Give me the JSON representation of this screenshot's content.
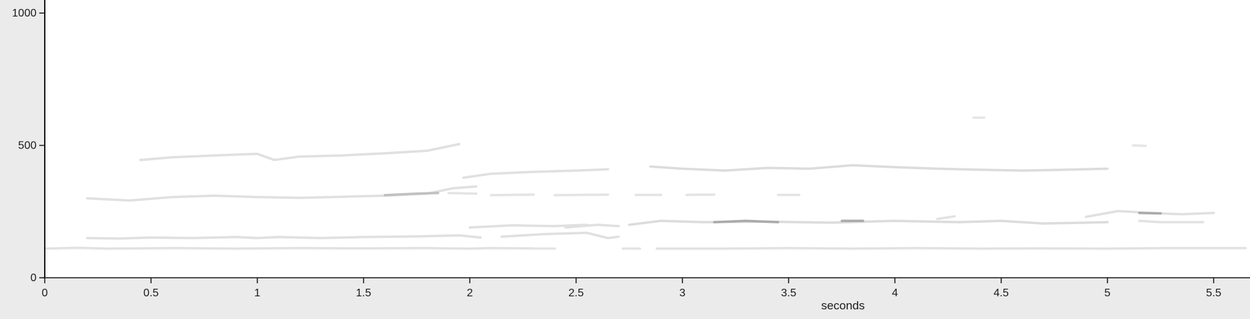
{
  "chart_data": {
    "type": "line",
    "title": "",
    "xlabel": "seconds",
    "ylabel": "",
    "xlim": [
      0,
      5.68
    ],
    "ylim": [
      0,
      1000
    ],
    "x_ticks": [
      0,
      0.5,
      1,
      1.5,
      2,
      2.5,
      3,
      3.5,
      4,
      4.5,
      5,
      5.5
    ],
    "x_tick_labels": [
      "0",
      "0.5",
      "1",
      "1.5",
      "2",
      "2.5",
      "3",
      "3.5",
      "4",
      "4.5",
      "5",
      "5.5"
    ],
    "y_ticks": [
      0,
      500,
      1000
    ],
    "y_tick_labels": [
      "0",
      "500",
      "1000"
    ],
    "grid": false,
    "colors": {
      "plot_bg": "#ffffff",
      "frame_bg": "#ebebeb",
      "axis": "#1a1a1a",
      "trace_light": "#e4e4e4",
      "trace_dark": "#a8a8a8"
    },
    "series": [
      {
        "color": "#e2e2e2",
        "x": [
          0.0,
          0.15,
          0.3,
          0.6,
          0.9,
          1.2,
          1.5,
          1.8,
          2.0,
          2.1,
          2.3
        ],
        "y": [
          110,
          113,
          110,
          112,
          110,
          112,
          111,
          112,
          110,
          112,
          111
        ]
      },
      {
        "color": "#e4e4e4",
        "x": [
          2.3,
          2.4
        ],
        "y": [
          110,
          110
        ]
      },
      {
        "color": "#e4e4e4",
        "x": [
          2.72,
          2.8
        ],
        "y": [
          110,
          110
        ]
      },
      {
        "color": "#e2e2e2",
        "x": [
          2.88,
          3.2,
          3.5,
          3.8,
          4.1,
          4.4,
          4.7,
          5.0,
          5.3,
          5.65
        ],
        "y": [
          110,
          110,
          112,
          110,
          112,
          110,
          111,
          110,
          112,
          112
        ]
      },
      {
        "color": "#e0e0e0",
        "x": [
          0.2,
          0.35,
          0.5,
          0.7,
          0.9,
          1.0,
          1.1,
          1.3,
          1.5,
          1.75,
          1.95,
          2.05
        ],
        "y": [
          150,
          148,
          152,
          150,
          154,
          150,
          154,
          150,
          154,
          156,
          160,
          152
        ]
      },
      {
        "color": "#e0e0e0",
        "x": [
          2.0,
          2.2,
          2.4,
          2.55
        ],
        "y": [
          190,
          198,
          195,
          200
        ]
      },
      {
        "color": "#e0e0e0",
        "x": [
          2.15,
          2.35,
          2.55,
          2.65,
          2.7
        ],
        "y": [
          155,
          165,
          170,
          150,
          155
        ]
      },
      {
        "color": "#e0e0e0",
        "x": [
          2.45,
          2.6,
          2.7
        ],
        "y": [
          190,
          200,
          195
        ]
      },
      {
        "color": "#dcdcdc",
        "x": [
          2.75,
          2.9,
          3.1,
          3.4,
          3.7,
          4.0,
          4.3,
          4.5,
          4.7,
          4.9,
          5.0
        ],
        "y": [
          200,
          215,
          210,
          212,
          208,
          215,
          210,
          215,
          205,
          208,
          210
        ]
      },
      {
        "color": "#aaaaaa",
        "x": [
          3.15,
          3.3,
          3.45
        ],
        "y": [
          210,
          215,
          210
        ]
      },
      {
        "color": "#aaaaaa",
        "x": [
          3.75,
          3.85
        ],
        "y": [
          215,
          215
        ]
      },
      {
        "color": "#e2e2e2",
        "x": [
          4.2,
          4.28
        ],
        "y": [
          222,
          232
        ]
      },
      {
        "color": "#e0e0e0",
        "x": [
          4.9,
          5.05,
          5.2,
          5.35,
          5.5
        ],
        "y": [
          230,
          252,
          245,
          240,
          245
        ]
      },
      {
        "color": "#aaaaaa",
        "x": [
          5.15,
          5.25
        ],
        "y": [
          245,
          243
        ]
      },
      {
        "color": "#e2e2e2",
        "x": [
          5.15,
          5.25,
          5.45
        ],
        "y": [
          215,
          210,
          210
        ]
      },
      {
        "color": "#e0e0e0",
        "x": [
          0.2,
          0.4,
          0.6,
          0.8,
          1.0,
          1.2,
          1.4,
          1.6,
          1.8,
          1.92,
          2.03
        ],
        "y": [
          300,
          292,
          305,
          310,
          305,
          302,
          306,
          310,
          318,
          338,
          345
        ]
      },
      {
        "color": "#c0c0c0",
        "x": [
          1.6,
          1.75,
          1.85
        ],
        "y": [
          312,
          318,
          320
        ]
      },
      {
        "color": "#e4e4e4",
        "x": [
          1.9,
          2.03
        ],
        "y": [
          320,
          318
        ]
      },
      {
        "color": "#e4e4e4",
        "x": [
          2.1,
          2.3
        ],
        "y": [
          312,
          314
        ]
      },
      {
        "color": "#e4e4e4",
        "x": [
          2.4,
          2.65
        ],
        "y": [
          312,
          314
        ]
      },
      {
        "color": "#e4e4e4",
        "x": [
          2.78,
          2.9
        ],
        "y": [
          313,
          313
        ]
      },
      {
        "color": "#e4e4e4",
        "x": [
          3.02,
          3.15
        ],
        "y": [
          313,
          314
        ]
      },
      {
        "color": "#e4e4e4",
        "x": [
          3.45,
          3.55
        ],
        "y": [
          313,
          313
        ]
      },
      {
        "color": "#e0e0e0",
        "x": [
          0.45,
          0.6,
          0.8,
          1.0,
          1.08,
          1.2,
          1.4,
          1.6,
          1.8,
          1.95
        ],
        "y": [
          445,
          455,
          462,
          468,
          445,
          458,
          462,
          470,
          480,
          505
        ]
      },
      {
        "color": "#e0e0e0",
        "x": [
          1.97,
          2.1,
          2.3,
          2.5,
          2.65
        ],
        "y": [
          378,
          393,
          400,
          405,
          410
        ]
      },
      {
        "color": "#dcdcdc",
        "x": [
          2.85,
          3.0,
          3.2,
          3.4,
          3.6,
          3.8,
          4.0,
          4.2,
          4.4,
          4.6,
          4.8,
          5.0
        ],
        "y": [
          420,
          412,
          405,
          415,
          412,
          425,
          418,
          412,
          408,
          405,
          408,
          412
        ]
      },
      {
        "color": "#e6e6e6",
        "x": [
          4.37,
          4.42
        ],
        "y": [
          605,
          605
        ]
      },
      {
        "color": "#e6e6e6",
        "x": [
          5.12,
          5.18
        ],
        "y": [
          500,
          498
        ]
      }
    ]
  }
}
